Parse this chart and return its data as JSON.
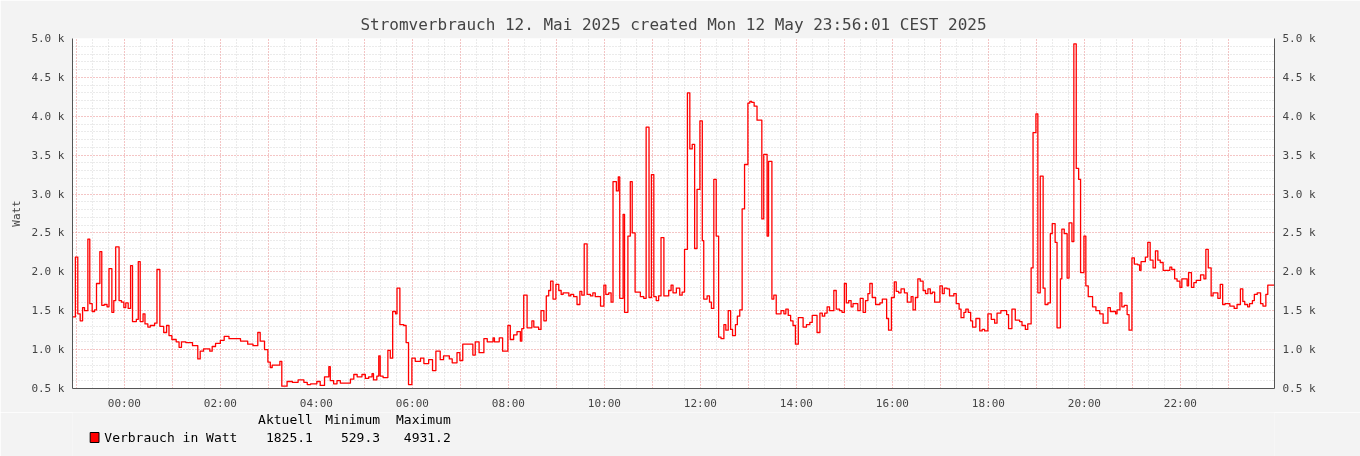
{
  "chart_data": {
    "type": "step",
    "title": "Stromverbrauch 12. Mai 2025 created Mon 12 May 23:56:01 CEST 2025",
    "ylabel": "Watt",
    "x": [
      -1.07,
      -1.02,
      -0.97,
      -0.92,
      -0.87,
      -0.83,
      -0.76,
      -0.72,
      -0.67,
      -0.62,
      -0.58,
      -0.51,
      -0.47,
      -0.42,
      -0.36,
      -0.32,
      -0.26,
      -0.22,
      -0.18,
      -0.11,
      -0.06,
      -0.01,
      0.03,
      0.08,
      0.13,
      0.17,
      0.25,
      0.29,
      0.33,
      0.39,
      0.43,
      0.49,
      0.54,
      0.63,
      0.68,
      0.74,
      0.82,
      0.88,
      0.93,
      0.99,
      1.08,
      1.14,
      1.19,
      1.28,
      1.42,
      1.53,
      1.58,
      1.65,
      1.78,
      1.83,
      1.9,
      2.0,
      2.08,
      2.18,
      2.42,
      2.57,
      2.68,
      2.78,
      2.83,
      2.92,
      2.99,
      3.04,
      3.08,
      3.24,
      3.28,
      3.39,
      3.5,
      3.62,
      3.74,
      3.81,
      3.88,
      4.01,
      4.08,
      4.17,
      4.26,
      4.29,
      4.36,
      4.43,
      4.5,
      4.64,
      4.71,
      4.78,
      4.85,
      4.95,
      5.02,
      5.09,
      5.16,
      5.19,
      5.26,
      5.3,
      5.33,
      5.39,
      5.49,
      5.54,
      5.59,
      5.65,
      5.68,
      5.74,
      5.82,
      5.87,
      5.92,
      5.99,
      6.06,
      6.17,
      6.24,
      6.34,
      6.42,
      6.49,
      6.58,
      6.65,
      6.77,
      6.83,
      6.93,
      6.99,
      7.05,
      7.26,
      7.31,
      7.39,
      7.49,
      7.56,
      7.68,
      7.71,
      7.81,
      7.88,
      7.99,
      8.04,
      8.11,
      8.18,
      8.25,
      8.28,
      8.32,
      8.39,
      8.49,
      8.53,
      8.63,
      8.68,
      8.74,
      8.79,
      8.84,
      8.88,
      8.93,
      8.99,
      9.05,
      9.1,
      9.14,
      9.26,
      9.3,
      9.36,
      9.43,
      9.49,
      9.53,
      9.58,
      9.64,
      9.71,
      9.76,
      9.81,
      9.92,
      9.99,
      10.03,
      10.09,
      10.14,
      10.18,
      10.25,
      10.29,
      10.32,
      10.39,
      10.42,
      10.49,
      10.54,
      10.58,
      10.64,
      10.75,
      10.82,
      10.87,
      10.93,
      10.98,
      11.03,
      11.08,
      11.13,
      11.18,
      11.24,
      11.34,
      11.39,
      11.43,
      11.5,
      11.57,
      11.62,
      11.67,
      11.73,
      11.78,
      11.83,
      11.88,
      11.93,
      11.99,
      12.04,
      12.07,
      12.14,
      12.19,
      12.23,
      12.28,
      12.33,
      12.38,
      12.43,
      12.49,
      12.53,
      12.58,
      12.63,
      12.67,
      12.73,
      12.77,
      12.82,
      12.87,
      12.92,
      12.99,
      13.03,
      13.07,
      13.12,
      13.18,
      13.28,
      13.32,
      13.39,
      13.42,
      13.49,
      13.53,
      13.58,
      13.68,
      13.74,
      13.78,
      13.83,
      13.88,
      13.93,
      13.98,
      14.04,
      14.14,
      14.21,
      14.28,
      14.33,
      14.43,
      14.49,
      14.54,
      14.59,
      14.64,
      14.69,
      14.78,
      14.83,
      14.9,
      14.95,
      15.0,
      15.04,
      15.09,
      15.14,
      15.18,
      15.28,
      15.33,
      15.39,
      15.44,
      15.49,
      15.53,
      15.58,
      15.65,
      15.74,
      15.79,
      15.88,
      15.92,
      15.98,
      16.04,
      16.08,
      16.13,
      16.18,
      16.25,
      16.31,
      16.39,
      16.43,
      16.48,
      16.53,
      16.58,
      16.64,
      16.69,
      16.74,
      16.79,
      16.83,
      16.88,
      16.99,
      17.04,
      17.08,
      17.14,
      17.19,
      17.28,
      17.33,
      17.39,
      17.43,
      17.49,
      17.53,
      17.58,
      17.63,
      17.67,
      17.74,
      17.82,
      17.87,
      17.92,
      17.99,
      18.06,
      18.13,
      18.18,
      18.26,
      18.38,
      18.42,
      18.49,
      18.56,
      18.65,
      18.7,
      18.77,
      18.82,
      18.89,
      18.93,
      18.99,
      19.03,
      19.08,
      19.14,
      19.18,
      19.24,
      19.29,
      19.33,
      19.39,
      19.43,
      19.5,
      19.53,
      19.58,
      19.64,
      19.68,
      19.74,
      19.78,
      19.83,
      19.88,
      19.92,
      19.99,
      20.03,
      20.08,
      20.17,
      20.24,
      20.32,
      20.39,
      20.49,
      20.54,
      20.65,
      20.68,
      20.74,
      20.78,
      20.83,
      20.89,
      20.93,
      20.99,
      21.04,
      21.11,
      21.15,
      21.18,
      21.27,
      21.32,
      21.37,
      21.43,
      21.48,
      21.53,
      21.58,
      21.64,
      21.78,
      21.82,
      21.88,
      21.93,
      21.99,
      22.03,
      22.14,
      22.17,
      22.23,
      22.28,
      22.33,
      22.42,
      22.49,
      22.53,
      22.58,
      22.64,
      22.68,
      22.78,
      22.83,
      22.88,
      22.93,
      23.03,
      23.12,
      23.18,
      23.25,
      23.3,
      23.34,
      23.4,
      23.44,
      23.5,
      23.54,
      23.6,
      23.67,
      23.72,
      23.78,
      23.82,
      23.96
    ],
    "series": [
      {
        "name": "Verbrauch in Watt",
        "color": "#ff0000",
        "values": [
          1420,
          2190,
          1460,
          1370,
          1540,
          1500,
          2420,
          1590,
          1490,
          1510,
          1850,
          2260,
          1570,
          1580,
          1550,
          2040,
          1480,
          1630,
          2320,
          1630,
          1610,
          1540,
          1600,
          1530,
          2080,
          1360,
          1390,
          2130,
          1360,
          1460,
          1330,
          1290,
          1310,
          1340,
          2030,
          1300,
          1220,
          1310,
          1180,
          1130,
          1100,
          1030,
          1100,
          1090,
          1050,
          880,
          980,
          1010,
          980,
          1040,
          1080,
          1120,
          1170,
          1140,
          1110,
          1070,
          1050,
          1220,
          1110,
          1000,
          840,
          770,
          800,
          850,
          530,
          590,
          580,
          610,
          580,
          550,
          560,
          590,
          540,
          650,
          780,
          600,
          560,
          600,
          570,
          570,
          620,
          680,
          650,
          680,
          630,
          650,
          690,
          610,
          660,
          920,
          660,
          640,
          990,
          890,
          1490,
          1460,
          1790,
          1320,
          1310,
          1090,
          550,
          890,
          850,
          890,
          820,
          870,
          730,
          980,
          870,
          920,
          880,
          830,
          960,
          860,
          1070,
          930,
          1100,
          960,
          1140,
          1100,
          1150,
          1100,
          1150,
          980,
          1310,
          1130,
          1190,
          1230,
          1110,
          1270,
          1700,
          1280,
          1370,
          1290,
          1260,
          1500,
          1370,
          1690,
          1760,
          1880,
          1650,
          1840,
          1760,
          1710,
          1730,
          1690,
          1710,
          1680,
          1580,
          1750,
          1700,
          2360,
          1710,
          1690,
          1730,
          1680,
          1560,
          1830,
          1710,
          1730,
          1610,
          3160,
          3040,
          3220,
          1660,
          2740,
          1480,
          2460,
          3160,
          2500,
          1740,
          1680,
          1660,
          3860,
          1670,
          3250,
          1680,
          1630,
          1690,
          2440,
          1690,
          1760,
          1830,
          1730,
          1790,
          1700,
          1740,
          2290,
          4300,
          3580,
          3640,
          2300,
          3060,
          3940,
          2400,
          1650,
          1690,
          1610,
          1530,
          3190,
          2460,
          1160,
          1140,
          1320,
          1250,
          1500,
          1260,
          1180,
          1320,
          1430,
          1510,
          2810,
          3380,
          4170,
          4190,
          4180,
          4130,
          3950,
          2680,
          3510,
          2460,
          3420,
          1650,
          1700,
          1460,
          1500,
          1460,
          1520,
          1440,
          1370,
          1310,
          1070,
          1410,
          1290,
          1320,
          1350,
          1440,
          1220,
          1470,
          1430,
          1470,
          1550,
          1500,
          1760,
          1520,
          1500,
          1480,
          1850,
          1600,
          1630,
          1550,
          1590,
          1500,
          1660,
          1480,
          1630,
          1720,
          1850,
          1670,
          1580,
          1600,
          1650,
          1400,
          1250,
          1670,
          1870,
          1750,
          1730,
          1780,
          1730,
          1610,
          1680,
          1510,
          1670,
          1910,
          1880,
          1760,
          1720,
          1780,
          1720,
          1740,
          1610,
          1820,
          1720,
          1790,
          1780,
          1690,
          1720,
          1590,
          1520,
          1410,
          1480,
          1520,
          1480,
          1370,
          1290,
          1400,
          1240,
          1260,
          1240,
          1460,
          1390,
          1340,
          1470,
          1500,
          1450,
          1270,
          1520,
          1380,
          1360,
          1310,
          1260,
          1330,
          2050,
          3790,
          4030,
          1730,
          3230,
          1790,
          1580,
          1600,
          2490,
          2620,
          2380,
          1280,
          1910,
          2550,
          2490,
          1920,
          2630,
          2390,
          4930,
          3330,
          3190,
          1990,
          2460,
          1820,
          1680,
          1550,
          1500,
          1460,
          1340,
          1540,
          1490,
          1460,
          1510,
          1730,
          1550,
          1570,
          1450,
          1250,
          2180,
          2100,
          2090,
          2020,
          2130,
          2190,
          2380,
          2150,
          2050,
          2270,
          2150,
          2120,
          2020,
          2060,
          2030,
          1910,
          1880,
          1800,
          1910,
          1820,
          1990,
          1800,
          1860,
          1890,
          1960,
          1910,
          2290,
          2050,
          1690,
          1730,
          1660,
          1840,
          1580,
          1590,
          1560,
          1530,
          1580,
          1780,
          1620,
          1580,
          1550,
          1590,
          1630,
          1710,
          1730,
          1590,
          1560,
          1710,
          1830,
          1830
        ]
      }
    ],
    "xlim": [
      -1.08,
      23.96
    ],
    "xticks": [
      {
        "value": -1,
        "label": null
      },
      {
        "value": 0,
        "label": "00:00"
      },
      {
        "value": 1,
        "label": null
      },
      {
        "value": 2,
        "label": "02:00"
      },
      {
        "value": 3,
        "label": null
      },
      {
        "value": 4,
        "label": "04:00"
      },
      {
        "value": 5,
        "label": null
      },
      {
        "value": 6,
        "label": "06:00"
      },
      {
        "value": 7,
        "label": null
      },
      {
        "value": 8,
        "label": "08:00"
      },
      {
        "value": 9,
        "label": null
      },
      {
        "value": 10,
        "label": "10:00"
      },
      {
        "value": 11,
        "label": null
      },
      {
        "value": 12,
        "label": "12:00"
      },
      {
        "value": 13,
        "label": null
      },
      {
        "value": 14,
        "label": "14:00"
      },
      {
        "value": 15,
        "label": null
      },
      {
        "value": 16,
        "label": "16:00"
      },
      {
        "value": 17,
        "label": null
      },
      {
        "value": 18,
        "label": "18:00"
      },
      {
        "value": 19,
        "label": null
      },
      {
        "value": 20,
        "label": "20:00"
      },
      {
        "value": 21,
        "label": null
      },
      {
        "value": 22,
        "label": "22:00"
      },
      {
        "value": 23,
        "label": null
      }
    ],
    "ylim": [
      500,
      5000
    ],
    "yticks": [
      {
        "value": 500,
        "label": "0.5 k"
      },
      {
        "value": 1000,
        "label": "1.0 k"
      },
      {
        "value": 1500,
        "label": "1.5 k"
      },
      {
        "value": 2000,
        "label": "2.0 k"
      },
      {
        "value": 2500,
        "label": "2.5 k"
      },
      {
        "value": 3000,
        "label": "3.0 k"
      },
      {
        "value": 3500,
        "label": "3.5 k"
      },
      {
        "value": 4000,
        "label": "4.0 k"
      },
      {
        "value": 4500,
        "label": "4.5 k"
      },
      {
        "value": 5000,
        "label": "5.0 k"
      }
    ],
    "y2lim": [
      500,
      5000
    ],
    "y2ticks": [
      {
        "value": 500,
        "label": "0.5 k"
      },
      {
        "value": 1000,
        "label": "1.0 k"
      },
      {
        "value": 1500,
        "label": "1.5 k"
      },
      {
        "value": 2000,
        "label": "2.0 k"
      },
      {
        "value": 2500,
        "label": "2.5 k"
      },
      {
        "value": 3000,
        "label": "3.0 k"
      },
      {
        "value": 3500,
        "label": "3.5 k"
      },
      {
        "value": 4000,
        "label": "4.0 k"
      },
      {
        "value": 4500,
        "label": "4.5 k"
      },
      {
        "value": 5000,
        "label": "5.0 k"
      }
    ],
    "annotations": [
      "Aktuell",
      "Minimum",
      "Maximum",
      "1825.1",
      "529.3",
      "4931.2"
    ],
    "grid": true,
    "legend": "bottom left",
    "line_style": "solid"
  }
}
